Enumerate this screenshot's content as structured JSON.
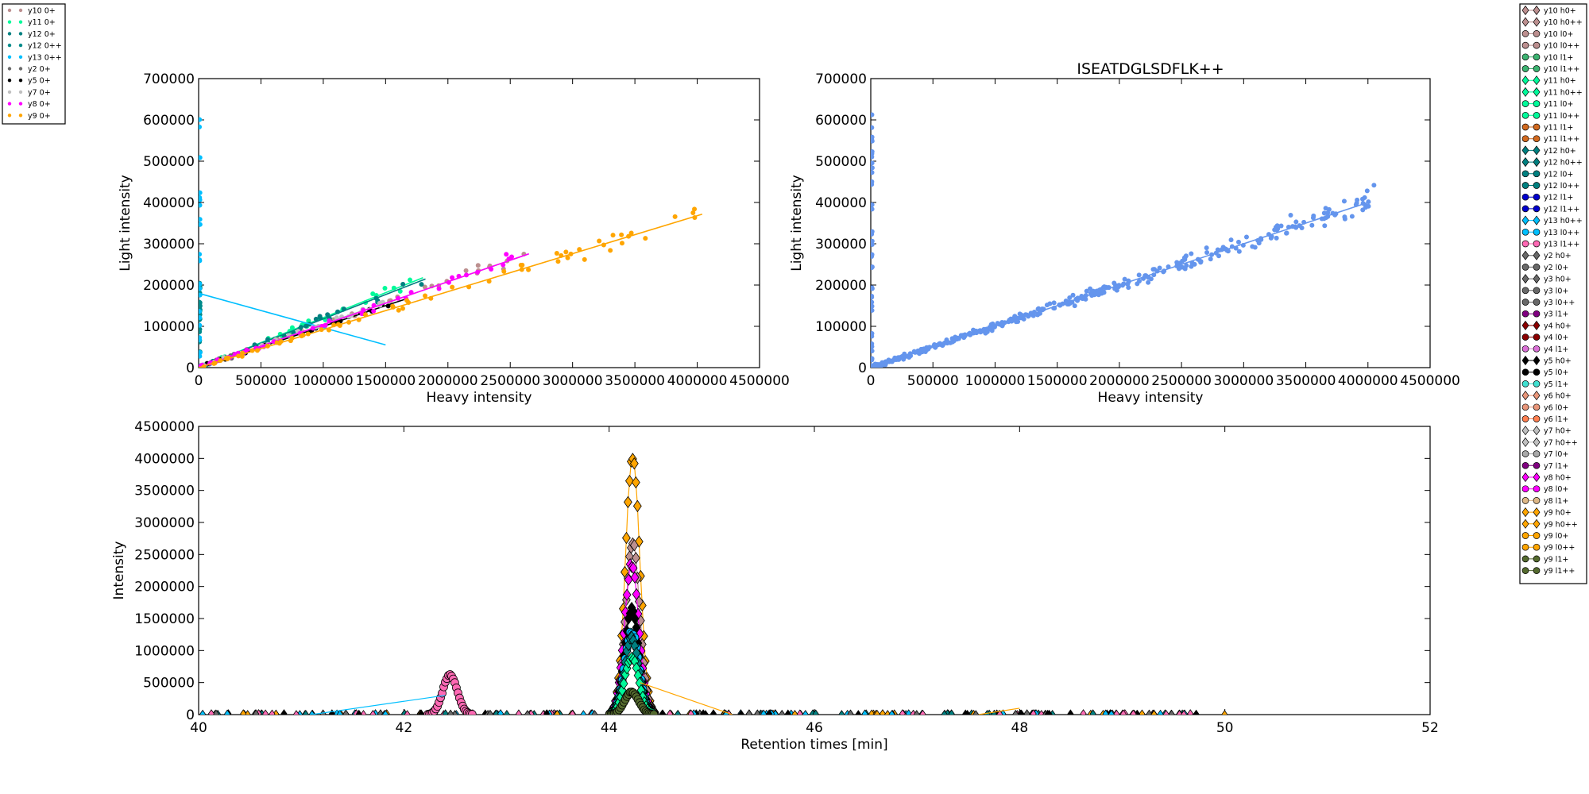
{
  "chart_data": [
    {
      "type": "scatter",
      "panel": "top-left",
      "title": "",
      "xlabel": "Heavy intensity",
      "ylabel": "Light intensity",
      "xlim": [
        0,
        4500000
      ],
      "ylim": [
        0,
        700000
      ],
      "xticks": [
        0,
        500000,
        1000000,
        1500000,
        2000000,
        2500000,
        3000000,
        3500000,
        4000000,
        4500000
      ],
      "yticks": [
        0,
        100000,
        200000,
        300000,
        400000,
        500000,
        600000,
        700000
      ],
      "legend_position": "outside top-left",
      "series": [
        {
          "name": "y10 0+",
          "color": "#bc8f8f",
          "x_range": [
            0,
            2630000
          ],
          "slope": 0.104,
          "fit_end": 2630000
        },
        {
          "name": "y11 0+",
          "color": "#00fa9a",
          "x_range": [
            0,
            1800000
          ],
          "slope": 0.121,
          "fit_end": 1800000
        },
        {
          "name": "y12 0+",
          "color": "#008080",
          "x_range": [
            0,
            1800000
          ],
          "slope": 0.118,
          "fit_end": 1820000
        },
        {
          "name": "y12 0++",
          "color": "#008b8b",
          "x_range": [
            0,
            40000
          ],
          "slope": null,
          "fit_end": null
        },
        {
          "name": "y13 0++",
          "color": "#00bfff",
          "x_range": [
            0,
            40000
          ],
          "slope": null,
          "fit_end": null,
          "fit_line": [
            [
              0,
              180000
            ],
            [
              1500000,
              55000
            ]
          ]
        },
        {
          "name": "y2 0+",
          "color": "#696969",
          "x_range": [
            0,
            300000
          ],
          "slope": 0.11,
          "fit_end": 300000
        },
        {
          "name": "y5 0+",
          "color": "#000000",
          "x_range": [
            0,
            1680000
          ],
          "slope": 0.1,
          "fit_end": 1680000
        },
        {
          "name": "y7 0+",
          "color": "#c0c0c0",
          "x_range": [
            0,
            1500000
          ],
          "slope": 0.105,
          "fit_end": 1500000
        },
        {
          "name": "y8 0+",
          "color": "#ff00ff",
          "x_range": [
            0,
            2600000
          ],
          "slope": 0.104,
          "fit_end": 2650000
        },
        {
          "name": "y9 0+",
          "color": "#ffa500",
          "x_range": [
            0,
            4040000
          ],
          "slope": 0.092,
          "fit_end": 4040000
        }
      ]
    },
    {
      "type": "scatter",
      "panel": "top-right",
      "title": "ISEATDGLSDFLK++",
      "xlabel": "Heavy intensity",
      "ylabel": "Light intensity",
      "xlim": [
        0,
        4500000
      ],
      "ylim": [
        0,
        700000
      ],
      "xticks": [
        0,
        500000,
        1000000,
        1500000,
        2000000,
        2500000,
        3000000,
        3500000,
        4000000,
        4500000
      ],
      "yticks": [
        0,
        100000,
        200000,
        300000,
        400000,
        500000,
        600000,
        700000
      ],
      "color": "#6495ed",
      "x_range": [
        0,
        4050000
      ],
      "fit_line": [
        [
          0,
          0
        ],
        [
          4000000,
          400000
        ]
      ]
    },
    {
      "type": "line",
      "panel": "bottom",
      "xlabel": "Retention times [min]",
      "ylabel": "Intensity",
      "xlim": [
        40,
        52
      ],
      "ylim": [
        0,
        4500000
      ],
      "xticks": [
        40,
        42,
        44,
        46,
        48,
        50,
        52
      ],
      "yticks": [
        0,
        500000,
        1000000,
        1500000,
        2000000,
        2500000,
        3000000,
        3500000,
        4000000,
        4500000
      ],
      "peaks": [
        {
          "series": "y9 h0+",
          "color": "#ffa500",
          "center": 44.23,
          "height": 4020000
        },
        {
          "series": "y10 h0+",
          "color": "#bc8f8f",
          "center": 44.23,
          "height": 2650000
        },
        {
          "series": "y8 h0+",
          "color": "#ff00ff",
          "center": 44.22,
          "height": 2350000
        },
        {
          "series": "y5 h0+",
          "color": "#000000",
          "center": 44.22,
          "height": 1650000
        },
        {
          "series": "y13 l0++",
          "color": "#00bfff",
          "center": 44.22,
          "height": 1300000
        },
        {
          "series": "y12 h0+",
          "color": "#008080",
          "center": 44.22,
          "height": 1200000
        },
        {
          "series": "y11 h0+",
          "color": "#00fa9a",
          "center": 44.22,
          "height": 900000
        },
        {
          "series": "y13 l1++",
          "color": "#ff69b4",
          "center": 42.45,
          "height": 620000
        },
        {
          "series": "y9 l1+",
          "color": "#556b2f",
          "center": 44.22,
          "height": 350000
        }
      ],
      "baseline_range": [
        40,
        50
      ]
    }
  ],
  "legend_left": [
    {
      "label": "y10 0+",
      "color": "#bc8f8f"
    },
    {
      "label": "y11 0+",
      "color": "#00fa9a"
    },
    {
      "label": "y12 0+",
      "color": "#008080"
    },
    {
      "label": "y12 0++",
      "color": "#008b8b"
    },
    {
      "label": "y13 0++",
      "color": "#00bfff"
    },
    {
      "label": "y2 0+",
      "color": "#696969"
    },
    {
      "label": "y5 0+",
      "color": "#000000"
    },
    {
      "label": "y7 0+",
      "color": "#c0c0c0"
    },
    {
      "label": "y8 0+",
      "color": "#ff00ff"
    },
    {
      "label": "y9 0+",
      "color": "#ffa500"
    }
  ],
  "legend_right": [
    {
      "label": "y10 h0+",
      "color": "#bc8f8f",
      "marker": "diamond"
    },
    {
      "label": "y10 h0++",
      "color": "#bc8f8f",
      "marker": "diamond"
    },
    {
      "label": "y10 l0+",
      "color": "#bc8f8f",
      "marker": "circle"
    },
    {
      "label": "y10 l0++",
      "color": "#bc8f8f",
      "marker": "circle"
    },
    {
      "label": "y10 l1+",
      "color": "#3cb371",
      "marker": "circle"
    },
    {
      "label": "y10 l1++",
      "color": "#3cb371",
      "marker": "circle"
    },
    {
      "label": "y11 h0+",
      "color": "#00fa9a",
      "marker": "diamond"
    },
    {
      "label": "y11 h0++",
      "color": "#00fa9a",
      "marker": "diamond"
    },
    {
      "label": "y11 l0+",
      "color": "#00fa9a",
      "marker": "circle"
    },
    {
      "label": "y11 l0++",
      "color": "#00fa9a",
      "marker": "circle"
    },
    {
      "label": "y11 l1+",
      "color": "#d2691e",
      "marker": "circle"
    },
    {
      "label": "y11 l1++",
      "color": "#d2691e",
      "marker": "circle"
    },
    {
      "label": "y12 h0+",
      "color": "#008080",
      "marker": "diamond"
    },
    {
      "label": "y12 h0++",
      "color": "#008080",
      "marker": "diamond"
    },
    {
      "label": "y12 l0+",
      "color": "#008080",
      "marker": "circle"
    },
    {
      "label": "y12 l0++",
      "color": "#008080",
      "marker": "circle"
    },
    {
      "label": "y12 l1+",
      "color": "#0000cd",
      "marker": "circle"
    },
    {
      "label": "y12 l1++",
      "color": "#0000cd",
      "marker": "circle"
    },
    {
      "label": "y13 h0++",
      "color": "#00bfff",
      "marker": "diamond"
    },
    {
      "label": "y13 l0++",
      "color": "#00bfff",
      "marker": "circle"
    },
    {
      "label": "y13 l1++",
      "color": "#ff69b4",
      "marker": "circle"
    },
    {
      "label": "y2 h0+",
      "color": "#696969",
      "marker": "diamond"
    },
    {
      "label": "y2 l0+",
      "color": "#696969",
      "marker": "circle"
    },
    {
      "label": "y3 h0+",
      "color": "#696969",
      "marker": "diamond"
    },
    {
      "label": "y3 l0+",
      "color": "#696969",
      "marker": "circle"
    },
    {
      "label": "y3 l0++",
      "color": "#696969",
      "marker": "circle"
    },
    {
      "label": "y3 l1+",
      "color": "#800080",
      "marker": "circle"
    },
    {
      "label": "y4 h0+",
      "color": "#8b0000",
      "marker": "diamond"
    },
    {
      "label": "y4 l0+",
      "color": "#8b0000",
      "marker": "circle"
    },
    {
      "label": "y4 l1+",
      "color": "#da70d6",
      "marker": "circle"
    },
    {
      "label": "y5 h0+",
      "color": "#000000",
      "marker": "diamond"
    },
    {
      "label": "y5 l0+",
      "color": "#000000",
      "marker": "circle"
    },
    {
      "label": "y5 l1+",
      "color": "#40e0d0",
      "marker": "circle"
    },
    {
      "label": "y6 h0+",
      "color": "#e9967a",
      "marker": "diamond"
    },
    {
      "label": "y6 l0+",
      "color": "#e9967a",
      "marker": "circle"
    },
    {
      "label": "y6 l1+",
      "color": "#ff7f50",
      "marker": "circle"
    },
    {
      "label": "y7 h0+",
      "color": "#c0c0c0",
      "marker": "diamond"
    },
    {
      "label": "y7 h0++",
      "color": "#c0c0c0",
      "marker": "diamond"
    },
    {
      "label": "y7 l0+",
      "color": "#a9a9a9",
      "marker": "circle"
    },
    {
      "label": "y7 l1+",
      "color": "#800080",
      "marker": "circle"
    },
    {
      "label": "y8 h0+",
      "color": "#ff00ff",
      "marker": "diamond"
    },
    {
      "label": "y8 l0+",
      "color": "#ff00ff",
      "marker": "circle"
    },
    {
      "label": "y8 l1+",
      "color": "#deb887",
      "marker": "circle"
    },
    {
      "label": "y9 h0+",
      "color": "#ffa500",
      "marker": "diamond"
    },
    {
      "label": "y9 h0++",
      "color": "#ffa500",
      "marker": "diamond"
    },
    {
      "label": "y9 l0+",
      "color": "#ffa500",
      "marker": "circle"
    },
    {
      "label": "y9 l0++",
      "color": "#ffa500",
      "marker": "circle"
    },
    {
      "label": "y9 l1+",
      "color": "#556b2f",
      "marker": "circle"
    },
    {
      "label": "y9 l1++",
      "color": "#556b2f",
      "marker": "circle"
    }
  ]
}
